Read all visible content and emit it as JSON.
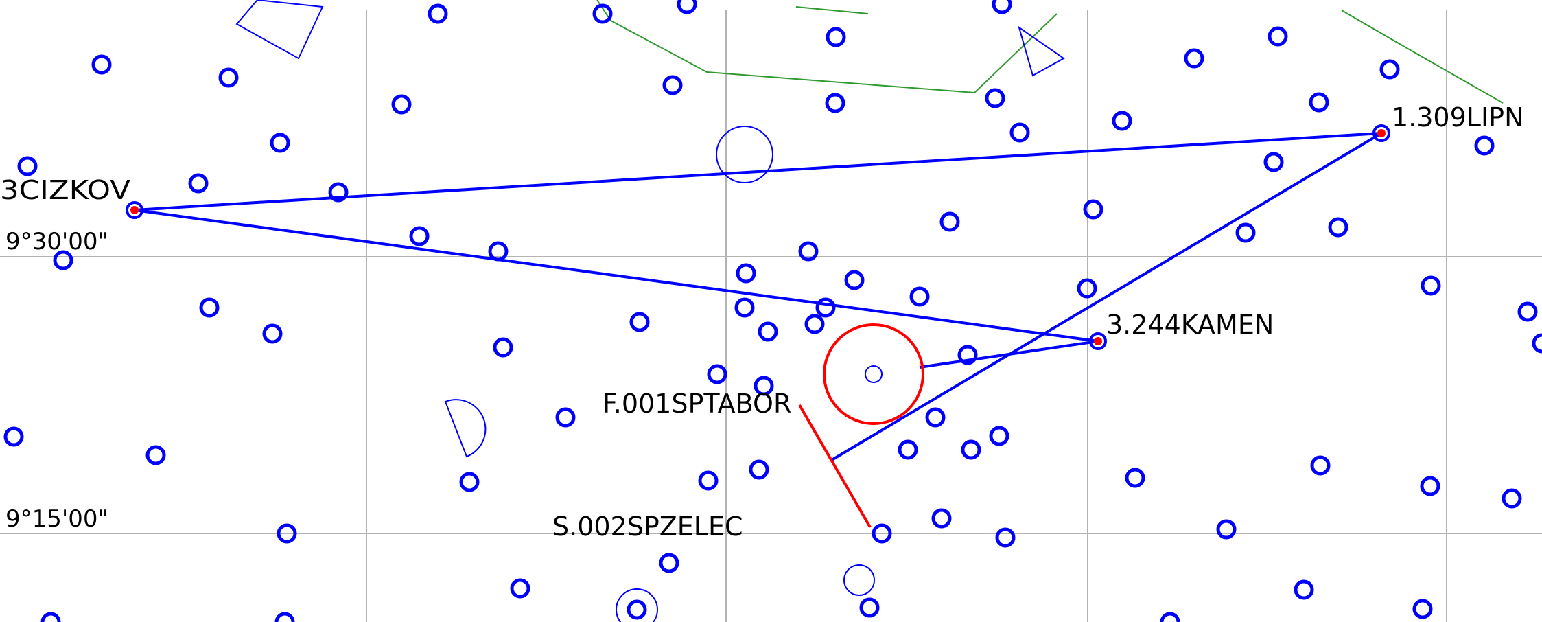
{
  "map": {
    "colors": {
      "grid": "#b3b3b3",
      "point": "#0000ff",
      "route": "#0000ff",
      "highlight": "#ff0000",
      "border": "#2e9a2e",
      "label": "#000000"
    },
    "grid_labels": {
      "lat_upper": "9°30'00\"",
      "lat_lower": "9°15'00\""
    },
    "stations": [
      {
        "id": "cizkov",
        "label": "3CIZKOV"
      },
      {
        "id": "lipn",
        "label": "1.309LIPN"
      },
      {
        "id": "kamen",
        "label": "3.244KAMEN"
      },
      {
        "id": "tabor",
        "label": "F.001SPTABOR"
      },
      {
        "id": "zelec",
        "label": "S.002SPZELEC"
      }
    ]
  }
}
